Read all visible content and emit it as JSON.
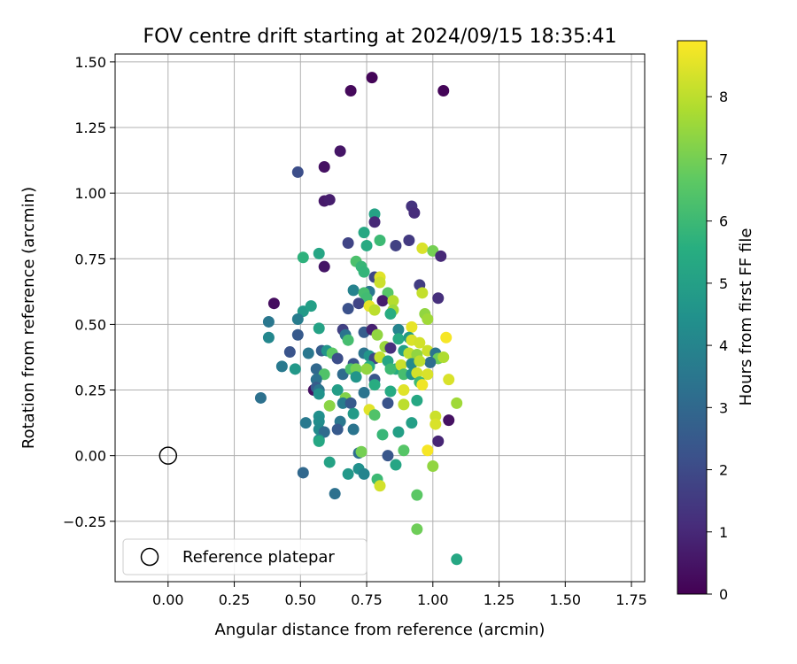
{
  "chart_data": {
    "type": "scatter",
    "title": "FOV centre drift starting at 2024/09/15 18:35:41",
    "xlabel": "Angular distance from reference (arcmin)",
    "ylabel": "Rotation from reference (arcmin)",
    "xlim": [
      -0.2,
      1.8
    ],
    "ylim": [
      -0.48,
      1.53
    ],
    "grid": true,
    "xticks": [
      0.0,
      0.25,
      0.5,
      0.75,
      1.0,
      1.25,
      1.5,
      1.75
    ],
    "xtick_labels": [
      "0.00",
      "0.25",
      "0.50",
      "0.75",
      "1.00",
      "1.25",
      "1.50",
      "1.75"
    ],
    "yticks": [
      -0.25,
      0.0,
      0.25,
      0.5,
      0.75,
      1.0,
      1.25,
      1.5
    ],
    "ytick_labels": [
      "−0.25",
      "0.00",
      "0.25",
      "0.50",
      "0.75",
      "1.00",
      "1.25",
      "1.50"
    ],
    "colorbar": {
      "label": "Hours from first FF file",
      "colormap": "viridis",
      "range": [
        0,
        8.9
      ],
      "ticks": [
        0,
        1,
        2,
        3,
        4,
        5,
        6,
        7,
        8
      ],
      "tick_labels": [
        "0",
        "1",
        "2",
        "3",
        "4",
        "5",
        "6",
        "7",
        "8"
      ]
    },
    "legend": {
      "position": "lower-left",
      "entries": [
        {
          "label": "Reference platepar",
          "marker": "hollow-circle",
          "x": 0.0,
          "y": 0.0
        }
      ]
    },
    "points": [
      [
        0.77,
        1.44,
        0.1
      ],
      [
        0.69,
        1.39,
        0.2
      ],
      [
        1.04,
        1.39,
        0.1
      ],
      [
        0.65,
        1.16,
        0.5
      ],
      [
        0.59,
        1.1,
        0.4
      ],
      [
        0.49,
        1.08,
        2.1
      ],
      [
        0.59,
        0.97,
        0.6
      ],
      [
        0.61,
        0.975,
        0.7
      ],
      [
        0.92,
        0.95,
        1.3
      ],
      [
        0.93,
        0.925,
        1.1
      ],
      [
        0.78,
        0.92,
        5.1
      ],
      [
        0.78,
        0.89,
        1.0
      ],
      [
        0.74,
        0.85,
        5.3
      ],
      [
        0.8,
        0.82,
        6.0
      ],
      [
        0.91,
        0.82,
        1.5
      ],
      [
        0.68,
        0.81,
        1.8
      ],
      [
        0.75,
        0.8,
        5.4
      ],
      [
        0.86,
        0.8,
        1.7
      ],
      [
        0.96,
        0.79,
        8.4
      ],
      [
        1.0,
        0.78,
        7.0
      ],
      [
        1.03,
        0.76,
        1.0
      ],
      [
        0.51,
        0.755,
        5.7
      ],
      [
        0.57,
        0.77,
        5.2
      ],
      [
        0.71,
        0.74,
        6.3
      ],
      [
        0.73,
        0.72,
        5.9
      ],
      [
        0.59,
        0.72,
        0.5
      ],
      [
        0.74,
        0.7,
        5.8
      ],
      [
        0.78,
        0.68,
        1.9
      ],
      [
        0.8,
        0.68,
        8.5
      ],
      [
        0.8,
        0.66,
        8.2
      ],
      [
        0.95,
        0.65,
        1.6
      ],
      [
        0.7,
        0.63,
        3.9
      ],
      [
        0.76,
        0.625,
        3.5
      ],
      [
        0.74,
        0.62,
        6.2
      ],
      [
        0.83,
        0.62,
        6.5
      ],
      [
        0.96,
        0.62,
        8.1
      ],
      [
        0.75,
        0.6,
        6.1
      ],
      [
        0.72,
        0.58,
        1.8
      ],
      [
        0.76,
        0.57,
        8.6
      ],
      [
        0.78,
        0.555,
        8.0
      ],
      [
        0.81,
        0.59,
        0.7
      ],
      [
        0.85,
        0.59,
        7.9
      ],
      [
        0.85,
        0.555,
        7.6
      ],
      [
        0.68,
        0.56,
        2.2
      ],
      [
        0.84,
        0.54,
        5.5
      ],
      [
        0.4,
        0.58,
        0.3
      ],
      [
        0.51,
        0.55,
        4.8
      ],
      [
        0.54,
        0.57,
        5.0
      ],
      [
        0.49,
        0.52,
        3.7
      ],
      [
        0.97,
        0.54,
        7.4
      ],
      [
        0.98,
        0.52,
        7.6
      ],
      [
        1.02,
        0.6,
        1.2
      ],
      [
        0.38,
        0.51,
        3.5
      ],
      [
        0.92,
        0.49,
        8.6
      ],
      [
        0.57,
        0.485,
        5.1
      ],
      [
        0.66,
        0.48,
        1.7
      ],
      [
        0.67,
        0.46,
        3.4
      ],
      [
        0.74,
        0.47,
        2.6
      ],
      [
        0.77,
        0.48,
        0.8
      ],
      [
        0.79,
        0.46,
        7.4
      ],
      [
        0.87,
        0.48,
        4.0
      ],
      [
        0.49,
        0.46,
        2.5
      ],
      [
        0.38,
        0.45,
        4.1
      ],
      [
        0.68,
        0.44,
        6.2
      ],
      [
        0.87,
        0.445,
        5.4
      ],
      [
        0.91,
        0.45,
        4.8
      ],
      [
        0.92,
        0.44,
        8.4
      ],
      [
        0.95,
        0.43,
        8.3
      ],
      [
        1.05,
        0.45,
        8.8
      ],
      [
        0.82,
        0.415,
        7.5
      ],
      [
        0.84,
        0.41,
        1.2
      ],
      [
        0.89,
        0.4,
        5.0
      ],
      [
        0.91,
        0.39,
        8.0
      ],
      [
        0.94,
        0.385,
        7.4
      ],
      [
        0.98,
        0.4,
        8.2
      ],
      [
        1.01,
        0.39,
        3.4
      ],
      [
        1.02,
        0.37,
        6.9
      ],
      [
        1.04,
        0.375,
        7.8
      ],
      [
        0.99,
        0.355,
        3.2
      ],
      [
        0.53,
        0.39,
        3.5
      ],
      [
        0.58,
        0.4,
        2.6
      ],
      [
        0.6,
        0.4,
        4.6
      ],
      [
        0.62,
        0.39,
        6.6
      ],
      [
        0.64,
        0.37,
        2.1
      ],
      [
        0.7,
        0.35,
        2.3
      ],
      [
        0.74,
        0.39,
        3.4
      ],
      [
        0.76,
        0.38,
        4.6
      ],
      [
        0.78,
        0.37,
        1.9
      ],
      [
        0.8,
        0.375,
        8.1
      ],
      [
        0.76,
        0.34,
        5.5
      ],
      [
        0.83,
        0.36,
        5.2
      ],
      [
        0.86,
        0.33,
        5.5
      ],
      [
        0.88,
        0.345,
        8.2
      ],
      [
        0.92,
        0.35,
        4.2
      ],
      [
        0.95,
        0.36,
        8.0
      ],
      [
        0.46,
        0.395,
        2.3
      ],
      [
        0.43,
        0.34,
        3.6
      ],
      [
        0.48,
        0.33,
        4.7
      ],
      [
        0.56,
        0.33,
        3.0
      ],
      [
        0.59,
        0.31,
        6.4
      ],
      [
        0.56,
        0.29,
        3.3
      ],
      [
        0.66,
        0.31,
        3.1
      ],
      [
        0.69,
        0.33,
        6.3
      ],
      [
        0.71,
        0.33,
        7.0
      ],
      [
        0.71,
        0.3,
        4.6
      ],
      [
        0.75,
        0.33,
        7.4
      ],
      [
        0.78,
        0.29,
        2.4
      ],
      [
        0.84,
        0.33,
        6.0
      ],
      [
        0.89,
        0.31,
        6.2
      ],
      [
        0.92,
        0.31,
        4.5
      ],
      [
        0.94,
        0.315,
        8.3
      ],
      [
        0.98,
        0.31,
        8.4
      ],
      [
        0.95,
        0.28,
        6.0
      ],
      [
        1.06,
        0.29,
        8.4
      ],
      [
        0.55,
        0.25,
        0.4
      ],
      [
        0.56,
        0.26,
        2.6
      ],
      [
        0.57,
        0.25,
        3.4
      ],
      [
        0.57,
        0.235,
        4.5
      ],
      [
        0.64,
        0.25,
        4.9
      ],
      [
        0.67,
        0.22,
        7.2
      ],
      [
        0.74,
        0.24,
        3.4
      ],
      [
        0.78,
        0.27,
        5.5
      ],
      [
        0.84,
        0.245,
        5.4
      ],
      [
        0.89,
        0.25,
        8.5
      ],
      [
        0.96,
        0.27,
        8.7
      ],
      [
        0.35,
        0.22,
        3.3
      ],
      [
        0.66,
        0.2,
        3.7
      ],
      [
        0.69,
        0.2,
        2.5
      ],
      [
        0.61,
        0.19,
        7.3
      ],
      [
        0.83,
        0.2,
        2.3
      ],
      [
        0.89,
        0.195,
        8.0
      ],
      [
        0.94,
        0.21,
        5.3
      ],
      [
        1.09,
        0.2,
        7.6
      ],
      [
        0.76,
        0.175,
        8.5
      ],
      [
        0.78,
        0.155,
        6.4
      ],
      [
        0.7,
        0.16,
        4.8
      ],
      [
        0.57,
        0.15,
        4.4
      ],
      [
        0.57,
        0.13,
        4.3
      ],
      [
        0.52,
        0.125,
        3.6
      ],
      [
        0.65,
        0.13,
        3.5
      ],
      [
        0.92,
        0.125,
        5.0
      ],
      [
        1.01,
        0.15,
        8.2
      ],
      [
        1.01,
        0.12,
        8.4
      ],
      [
        1.06,
        0.135,
        0.4
      ],
      [
        0.57,
        0.1,
        4.2
      ],
      [
        0.59,
        0.09,
        3.1
      ],
      [
        0.64,
        0.1,
        2.5
      ],
      [
        0.7,
        0.1,
        3.4
      ],
      [
        0.81,
        0.08,
        5.9
      ],
      [
        0.87,
        0.09,
        5.0
      ],
      [
        0.57,
        0.06,
        4.2
      ],
      [
        0.57,
        0.055,
        5.3
      ],
      [
        1.02,
        0.055,
        0.9
      ],
      [
        0.72,
        0.01,
        3.2
      ],
      [
        0.73,
        0.015,
        7.0
      ],
      [
        0.83,
        0.0,
        2.4
      ],
      [
        0.89,
        0.02,
        6.5
      ],
      [
        0.98,
        0.02,
        8.8
      ],
      [
        0.61,
        -0.025,
        5.1
      ],
      [
        0.86,
        -0.035,
        5.2
      ],
      [
        1.0,
        -0.04,
        7.4
      ],
      [
        0.51,
        -0.065,
        3.0
      ],
      [
        0.68,
        -0.07,
        4.7
      ],
      [
        0.72,
        -0.05,
        4.4
      ],
      [
        0.74,
        -0.07,
        4.0
      ],
      [
        0.79,
        -0.09,
        6.0
      ],
      [
        0.8,
        -0.115,
        8.3
      ],
      [
        0.63,
        -0.145,
        3.3
      ],
      [
        0.94,
        -0.15,
        6.6
      ],
      [
        0.94,
        -0.28,
        6.9
      ],
      [
        1.09,
        -0.395,
        5.3
      ]
    ]
  }
}
